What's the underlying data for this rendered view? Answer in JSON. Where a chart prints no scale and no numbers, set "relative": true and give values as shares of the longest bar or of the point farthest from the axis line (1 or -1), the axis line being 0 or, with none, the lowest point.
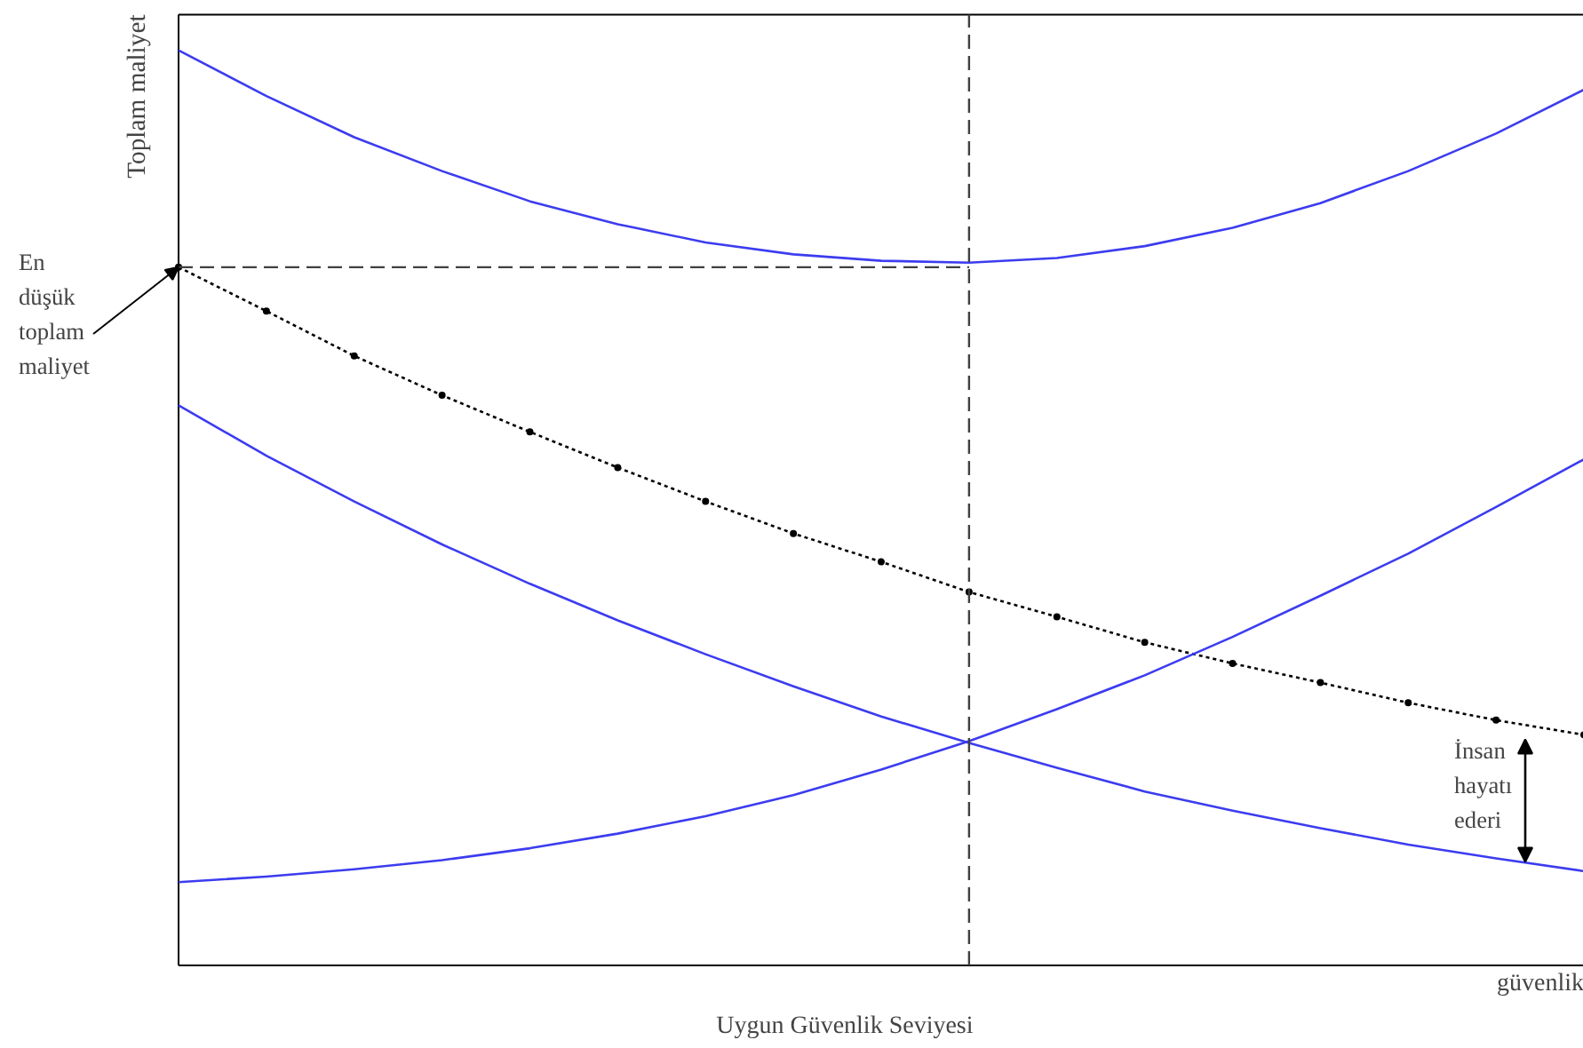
{
  "chart_data": {
    "type": "line",
    "relative": true,
    "ylabel": "Toplam maliyet",
    "xlabel": "güvenlik",
    "categories": [
      null,
      null,
      null,
      null,
      null,
      null,
      null,
      null,
      null,
      null,
      null,
      null,
      null,
      null,
      null,
      null,
      null
    ],
    "series": [
      {
        "color": "#3c3cf0",
        "values": [
          1.0,
          0.95,
          0.905,
          0.868,
          0.835,
          0.81,
          0.79,
          0.777,
          0.77,
          0.768,
          0.773,
          0.786,
          0.806,
          0.833,
          0.868,
          0.909,
          0.957
        ]
      },
      {
        "color": "#000000",
        "marker": "circle",
        "line_style": "dotted",
        "values": [
          0.763,
          0.715,
          0.666,
          0.623,
          0.583,
          0.544,
          0.507,
          0.472,
          0.441,
          0.408,
          0.381,
          0.353,
          0.33,
          0.309,
          0.287,
          0.268,
          0.252
        ]
      },
      {
        "color": "#3c3cf0",
        "values": [
          0.612,
          0.557,
          0.507,
          0.46,
          0.417,
          0.377,
          0.34,
          0.305,
          0.272,
          0.243,
          0.216,
          0.19,
          0.169,
          0.15,
          0.132,
          0.117,
          0.103
        ]
      },
      {
        "color": "#3c3cf0",
        "values": [
          0.091,
          0.097,
          0.105,
          0.115,
          0.128,
          0.144,
          0.163,
          0.186,
          0.214,
          0.245,
          0.28,
          0.317,
          0.359,
          0.404,
          0.45,
          0.501,
          0.553
        ]
      }
    ],
    "ref_lines": [
      {
        "axis": "y",
        "value": 0.763,
        "color": "#404040",
        "line_style": "dashed"
      }
    ],
    "annotations": [
      "En düşük toplam maliyet",
      "İnsan hayatı ederi",
      "Uygun Güvenlik Seviyesi"
    ],
    "grid": false
  }
}
